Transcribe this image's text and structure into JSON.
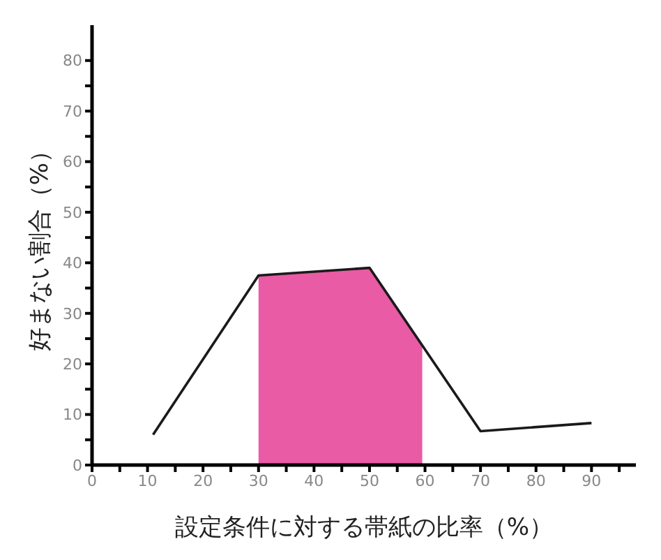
{
  "chart_data": {
    "type": "line",
    "xlabel": "設定条件に対する帯紙の比率（%）",
    "ylabel": "好まない割合（%）",
    "xlim": [
      0,
      98
    ],
    "ylim": [
      0,
      87
    ],
    "xticks": [
      0,
      {
        "value": 5,
        "label": null
      },
      10,
      {
        "value": 15,
        "label": null
      },
      20,
      {
        "value": 25,
        "label": null
      },
      30,
      {
        "value": 35,
        "label": null
      },
      40,
      {
        "value": 45,
        "label": null
      },
      50,
      {
        "value": 55,
        "label": null
      },
      60,
      {
        "value": 65,
        "label": null
      },
      70,
      {
        "value": 75,
        "label": null
      },
      80,
      {
        "value": 85,
        "label": null
      },
      90,
      {
        "value": 95,
        "label": null
      }
    ],
    "yticks": [
      0,
      {
        "value": 5,
        "label": null
      },
      10,
      {
        "value": 15,
        "label": null
      },
      20,
      {
        "value": 25,
        "label": null
      },
      30,
      {
        "value": 35,
        "label": null
      },
      40,
      {
        "value": 45,
        "label": null
      },
      50,
      {
        "value": 55,
        "label": null
      },
      60,
      {
        "value": 65,
        "label": null
      },
      70,
      {
        "value": 75,
        "label": null
      },
      80
    ],
    "grid": false,
    "marker": "none",
    "line_style": "solid",
    "series": [
      {
        "type": "area",
        "color": "#e95ba4",
        "x": [
          30,
          50,
          59.5
        ],
        "values": [
          37.5,
          39,
          23.7
        ]
      },
      {
        "color": "#1a1a1a",
        "x": [
          11,
          30,
          50,
          70,
          90
        ],
        "values": [
          6,
          37.5,
          39,
          6.7,
          8.3
        ]
      }
    ]
  }
}
